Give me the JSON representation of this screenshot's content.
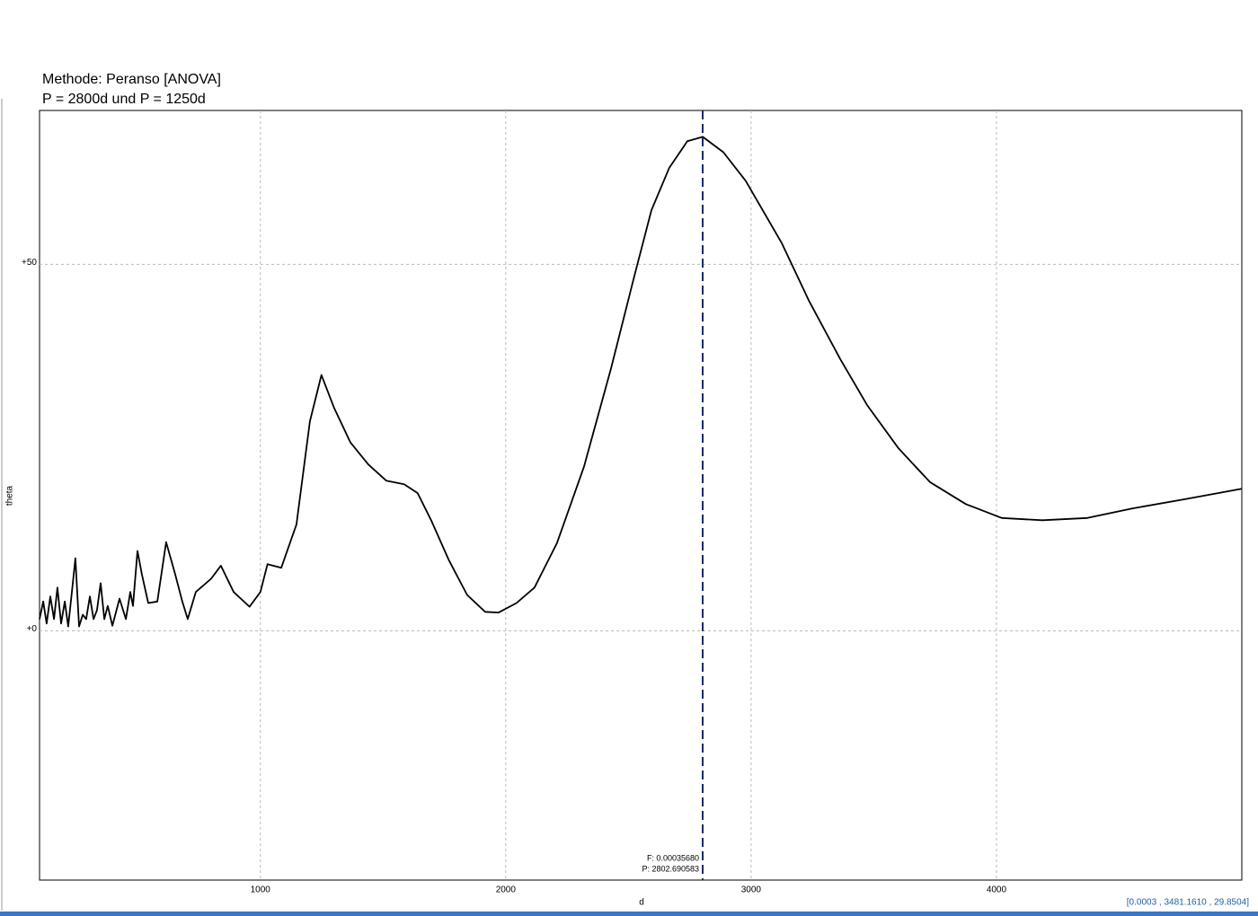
{
  "chart_data": {
    "type": "line",
    "title": "Methode: Peranso [ANOVA]",
    "subtitle": "P = 2800d und P = 1250d",
    "x_label": "d",
    "y_label": "theta",
    "color": "#000000",
    "grid": true,
    "xlim": [
      100,
      5000
    ],
    "ylim": [
      -34,
      71
    ],
    "xticks": [
      1000,
      2000,
      3000,
      4000
    ],
    "yticks": [
      {
        "value": 0,
        "label": "+0"
      },
      {
        "value": 50,
        "label": "+50"
      }
    ],
    "x": [
      100,
      115,
      129,
      144,
      159,
      173,
      188,
      203,
      217,
      232,
      246,
      261,
      276,
      290,
      305,
      320,
      334,
      349,
      364,
      378,
      397,
      426,
      452,
      470,
      481,
      499,
      517,
      543,
      580,
      616,
      653,
      682,
      704,
      737,
      799,
      839,
      891,
      956,
      1000,
      1029,
      1085,
      1147,
      1202,
      1249,
      1301,
      1367,
      1440,
      1513,
      1586,
      1641,
      1696,
      1769,
      1843,
      1916,
      1971,
      2044,
      2117,
      2209,
      2319,
      2429,
      2521,
      2594,
      2667,
      2740,
      2803,
      2887,
      2978,
      3125,
      3235,
      3363,
      3473,
      3601,
      3729,
      3875,
      4022,
      4187,
      4370,
      4553,
      4773,
      5000
    ],
    "values": [
      1.6,
      4.0,
      1.0,
      4.7,
      1.6,
      5.9,
      1.0,
      4.0,
      0.6,
      5.3,
      9.9,
      0.6,
      2.2,
      1.6,
      4.7,
      1.6,
      2.8,
      6.5,
      1.6,
      3.4,
      0.7,
      4.4,
      1.6,
      5.3,
      3.4,
      10.9,
      7.7,
      3.8,
      4.0,
      12.1,
      7.7,
      4.0,
      1.6,
      5.3,
      7.1,
      8.9,
      5.3,
      3.3,
      5.3,
      9.1,
      8.6,
      14.5,
      28.6,
      34.9,
      30.4,
      25.7,
      22.7,
      20.5,
      20.0,
      18.8,
      15.1,
      9.6,
      4.9,
      2.6,
      2.5,
      3.8,
      5.9,
      12.0,
      22.4,
      35.8,
      48.0,
      57.4,
      63.2,
      66.8,
      67.4,
      65.3,
      61.4,
      52.9,
      45.1,
      37.1,
      30.8,
      24.9,
      20.3,
      17.3,
      15.4,
      15.1,
      15.4,
      16.7,
      18.0,
      19.4
    ],
    "marker_x": 2802.690583,
    "marker_color": "#1a2a6c",
    "annotations": [
      "F: 0.00035680",
      "P: 2802.690583"
    ],
    "info": "[0.0003 , 3481.1610 , 29.8504]"
  }
}
